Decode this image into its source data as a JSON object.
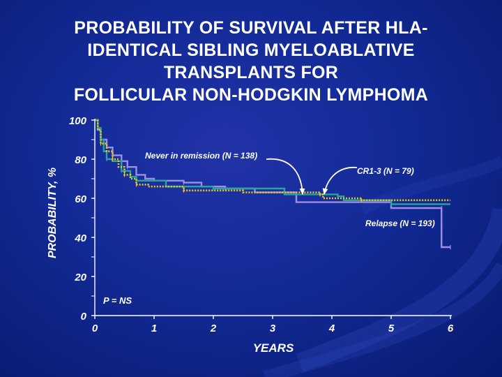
{
  "slide": {
    "title_lines": [
      "PROBABILITY OF SURVIVAL AFTER HLA-",
      "IDENTICAL SIBLING MYELOABLATIVE",
      "TRANSPLANTS FOR",
      "FOLLICULAR NON-HODGKIN LYMPHOMA"
    ]
  },
  "chart_data": {
    "type": "line",
    "title": "PROBABILITY OF SURVIVAL AFTER HLA-IDENTICAL SIBLING MYELOABLATIVE TRANSPLANTS FOR FOLLICULAR NON-HODGKIN LYMPHOMA",
    "xlabel": "YEARS",
    "ylabel": "PROBABILITY, %",
    "xlim": [
      0,
      6
    ],
    "ylim": [
      0,
      100
    ],
    "x_ticks": [
      "0",
      "1",
      "2",
      "3",
      "4",
      "5",
      "6"
    ],
    "y_ticks": [
      "0",
      "20",
      "40",
      "60",
      "80",
      "100"
    ],
    "annotations": {
      "never_in_remission": "Never in remission (N = 138)",
      "cr": "CR1-3 (N = 79)",
      "relapse": "Relapse (N = 193)",
      "p_value": "P = NS"
    },
    "series": [
      {
        "name": "CR1-3 (N = 79)",
        "color": "#2aa39a",
        "style": "solid",
        "steps": [
          [
            0,
            100
          ],
          [
            0.05,
            96
          ],
          [
            0.1,
            90
          ],
          [
            0.15,
            84
          ],
          [
            0.2,
            80
          ],
          [
            0.3,
            79
          ],
          [
            0.45,
            74
          ],
          [
            0.6,
            71
          ],
          [
            0.7,
            69
          ],
          [
            1.2,
            66
          ],
          [
            2.0,
            65
          ],
          [
            3.2,
            62
          ],
          [
            4.1,
            61
          ],
          [
            4.2,
            59
          ],
          [
            5.0,
            57
          ],
          [
            6.0,
            57
          ]
        ]
      },
      {
        "name": "Never in remission (N = 138)",
        "color": "#e8c81a",
        "style": "dotted",
        "steps": [
          [
            0,
            100
          ],
          [
            0.05,
            95
          ],
          [
            0.1,
            88
          ],
          [
            0.2,
            84
          ],
          [
            0.3,
            80
          ],
          [
            0.4,
            76
          ],
          [
            0.5,
            72
          ],
          [
            0.6,
            70
          ],
          [
            0.7,
            67
          ],
          [
            0.9,
            66
          ],
          [
            1.5,
            64
          ],
          [
            2.5,
            63
          ],
          [
            3.8,
            62
          ],
          [
            3.85,
            60
          ],
          [
            4.5,
            59
          ],
          [
            6.0,
            59
          ]
        ]
      },
      {
        "name": "Relapse (N = 193)",
        "color": "#9b8fe6",
        "style": "solid",
        "steps": [
          [
            0,
            100
          ],
          [
            0.05,
            95
          ],
          [
            0.1,
            90
          ],
          [
            0.2,
            86
          ],
          [
            0.3,
            82
          ],
          [
            0.45,
            79
          ],
          [
            0.55,
            76
          ],
          [
            0.7,
            72
          ],
          [
            0.85,
            70
          ],
          [
            1.0,
            69
          ],
          [
            1.5,
            68
          ],
          [
            1.8,
            66
          ],
          [
            2.2,
            65
          ],
          [
            2.7,
            63
          ],
          [
            3.4,
            61
          ],
          [
            3.4,
            58
          ],
          [
            5.0,
            58
          ],
          [
            5.0,
            55
          ],
          [
            5.85,
            55
          ],
          [
            5.85,
            35
          ],
          [
            6.0,
            35
          ]
        ]
      }
    ]
  }
}
